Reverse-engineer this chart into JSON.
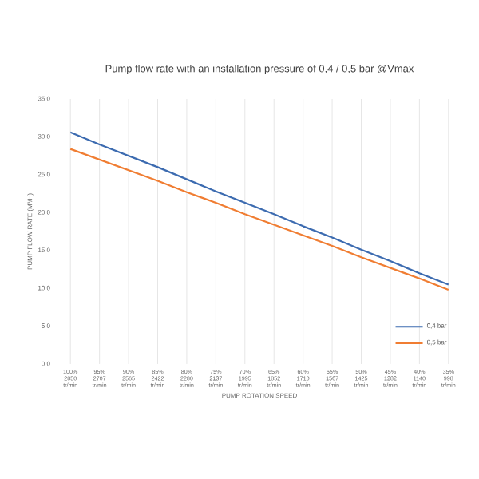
{
  "chart_data": {
    "type": "line",
    "title": "Pump flow rate with an installation pressure of 0,4 / 0,5 bar @Vmax",
    "xlabel": "PUMP ROTATION SPEED",
    "ylabel": "PUMP FLOW RATE (M³/H)",
    "categories": [
      "100% 2850 tr/min",
      "95% 2707 tr/min",
      "90% 2565 tr/min",
      "85% 2422 tr/min",
      "80% 2280 tr/min",
      "75% 2137 tr/min",
      "70% 1995 tr/min",
      "65% 1852 tr/min",
      "60% 1710 tr/min",
      "55% 1567 tr/min",
      "50% 1425 tr/min",
      "45% 1282 tr/min",
      "40% 1140 tr/min",
      "35% 998 tr/min"
    ],
    "series": [
      {
        "name": "0,4 bar",
        "color": "#3c6bb0",
        "values": [
          30.6,
          29.0,
          27.5,
          26.0,
          24.4,
          22.8,
          21.3,
          19.8,
          18.2,
          16.7,
          15.1,
          13.6,
          12.0,
          10.5
        ]
      },
      {
        "name": "0,5 bar",
        "color": "#f07d32",
        "values": [
          28.4,
          27.0,
          25.6,
          24.2,
          22.7,
          21.3,
          19.8,
          18.4,
          17.0,
          15.6,
          14.1,
          12.7,
          11.3,
          9.8
        ]
      }
    ],
    "ylim": [
      0,
      35
    ],
    "yticks": [
      {
        "value": 0,
        "label": "0,0"
      },
      {
        "value": 5,
        "label": "5,0"
      },
      {
        "value": 10,
        "label": "10,0"
      },
      {
        "value": 15,
        "label": "15,0"
      },
      {
        "value": 20,
        "label": "20,0"
      },
      {
        "value": 25,
        "label": "25,0"
      },
      {
        "value": 30,
        "label": "30,0"
      },
      {
        "value": 35,
        "label": "35,0"
      }
    ],
    "grid": "x",
    "legend": "bottom right",
    "marker": "none",
    "line_style": "solid"
  }
}
